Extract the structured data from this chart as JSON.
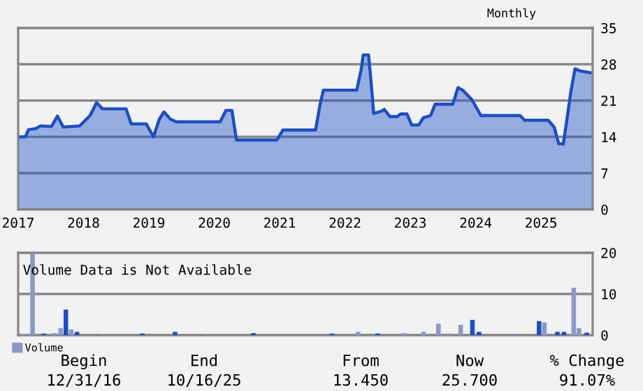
{
  "chart_data": [
    {
      "type": "area",
      "subtitle": "Monthly",
      "xlim": [
        2017.0,
        2025.79
      ],
      "ylim": [
        0,
        35
      ],
      "yticks": [
        0,
        7,
        14,
        21,
        28,
        35
      ],
      "xticks": [
        2017,
        2018,
        2019,
        2020,
        2021,
        2022,
        2023,
        2024,
        2025
      ],
      "grid": "y",
      "x": [
        2017.0,
        2017.11,
        2017.16,
        2017.27,
        2017.34,
        2017.51,
        2017.6,
        2017.69,
        2017.94,
        2018.1,
        2018.2,
        2018.29,
        2018.65,
        2018.73,
        2018.96,
        2019.07,
        2019.16,
        2019.23,
        2019.33,
        2019.42,
        2020.09,
        2020.18,
        2020.27,
        2020.34,
        2020.96,
        2021.05,
        2021.55,
        2021.62,
        2021.67,
        2022.18,
        2022.25,
        2022.28,
        2022.36,
        2022.39,
        2022.44,
        2022.57,
        2022.6,
        2022.69,
        2022.8,
        2022.85,
        2022.95,
        2023.02,
        2023.13,
        2023.2,
        2023.31,
        2023.38,
        2023.65,
        2023.73,
        2023.8,
        2023.94,
        2024.08,
        2024.68,
        2024.75,
        2025.11,
        2025.2,
        2025.27,
        2025.34,
        2025.39,
        2025.46,
        2025.52,
        2025.6,
        2025.78
      ],
      "values": [
        14.0,
        14.0,
        15.4,
        15.6,
        16.1,
        16.0,
        18.0,
        15.9,
        16.1,
        18.1,
        20.6,
        19.4,
        19.4,
        16.5,
        16.5,
        14.0,
        17.4,
        18.8,
        17.4,
        16.9,
        16.9,
        19.1,
        19.1,
        13.4,
        13.4,
        15.3,
        15.3,
        20.3,
        23.0,
        23.0,
        27.1,
        29.8,
        29.8,
        25.9,
        18.5,
        19.0,
        19.3,
        17.9,
        17.9,
        18.4,
        18.4,
        16.3,
        16.3,
        17.7,
        18.1,
        20.3,
        20.3,
        23.5,
        23.0,
        21.2,
        18.1,
        18.1,
        17.2,
        17.2,
        15.9,
        12.7,
        12.6,
        16.8,
        23.0,
        27.1,
        26.7,
        26.3
      ],
      "color": "#1a4fc8"
    },
    {
      "type": "bar",
      "xlim": [
        2017.0,
        2025.79
      ],
      "ylim": [
        0,
        20
      ],
      "yticks": [
        0,
        10,
        20
      ],
      "grid": "y",
      "tick_labels": "y",
      "legend": "bottom left",
      "series": [
        {
          "name": "Volume",
          "color": "#8899cc",
          "x": [
            2017.08,
            2017.22,
            2017.39,
            2017.56,
            2017.65,
            2017.73,
            2017.81,
            2017.9,
            2018.3,
            2018.9,
            2019.4,
            2019.9,
            2020.6,
            2021.3,
            2021.8,
            2022.2,
            2022.5,
            2022.9,
            2023.2,
            2023.43,
            2023.6,
            2023.77,
            2023.95,
            2024.05,
            2024.6,
            2024.97,
            2025.05,
            2025.25,
            2025.35,
            2025.5,
            2025.58,
            2025.7
          ],
          "values": [
            0.3,
            19.8,
            0.4,
            0.5,
            1.7,
            6.2,
            1.4,
            0.8,
            0.3,
            0.4,
            0.8,
            0.3,
            0.5,
            0.3,
            0.4,
            0.8,
            0.4,
            0.5,
            0.8,
            2.8,
            0.4,
            2.5,
            3.7,
            0.8,
            0.3,
            3.4,
            3.1,
            0.8,
            0.8,
            11.5,
            1.7,
            0.6
          ],
          "colors": [
            "#8899cc",
            "#8899cc",
            "#1a4fc8",
            "#8899cc",
            "#8899cc",
            "#1a4fc8",
            "#8899cc",
            "#1a4fc8",
            "#8899cc",
            "#1a4fc8",
            "#1a4fc8",
            "#8899cc",
            "#1a4fc8",
            "#8899cc",
            "#1a4fc8",
            "#8899cc",
            "#1a4fc8",
            "#8899cc",
            "#8899cc",
            "#8899cc",
            "#8899cc",
            "#8899cc",
            "#1a4fc8",
            "#1a4fc8",
            "#8899cc",
            "#1a4fc8",
            "#8899cc",
            "#1a4fc8",
            "#1a4fc8",
            "#8899cc",
            "#8899cc",
            "#1a4fc8"
          ]
        }
      ],
      "annotations": [
        "Volume Data is Not Available",
        "Begin",
        "12/31/16",
        "End",
        "10/16/25",
        "From",
        "13.450",
        "Now",
        "25.700",
        "% Change",
        "91.07%"
      ]
    }
  ]
}
